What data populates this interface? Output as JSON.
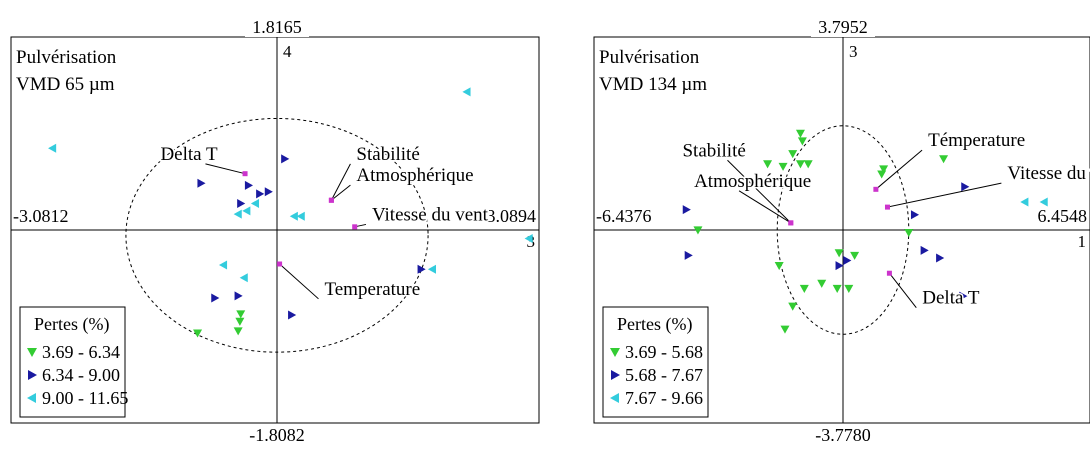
{
  "chart_data": [
    {
      "type": "scatter",
      "title_line1": "Pulvérisation",
      "title_line2": "VMD 65 µm",
      "axis_labels": {
        "top": "1.8165",
        "bottom": "-1.8082",
        "left": "-3.0812",
        "right": "3.0894",
        "center_small_top": "4",
        "right_small": "3"
      },
      "xlim": [
        -3.0812,
        3.0894
      ],
      "ylim": [
        -1.8082,
        1.8165
      ],
      "legend": {
        "title": "Pertes (%)",
        "items": [
          {
            "label": "3.69 - 6.34",
            "color": "#33cc33",
            "shape": "triangle-down"
          },
          {
            "label": "6.34 - 9.00",
            "color": "#1a1aa0",
            "shape": "triangle-right"
          },
          {
            "label": "9.00 - 11.65",
            "color": "#33ccdd",
            "shape": "triangle-left"
          }
        ]
      },
      "circle": {
        "cx": 0,
        "cy": -0.05,
        "rx": 1.75,
        "ry": 1.1
      },
      "variables": [
        {
          "name": "Delta T",
          "x": -0.37,
          "y": 0.53,
          "lx": -1.35,
          "ly": 0.66
        },
        {
          "name": "Stabilité",
          "x": 0.63,
          "y": 0.28,
          "lx": 0.92,
          "ly": 0.66
        },
        {
          "name": "Atmosphérique",
          "x": 0.63,
          "y": 0.28,
          "lx": 0.92,
          "ly": 0.46
        },
        {
          "name": "Vitesse du vent",
          "x": 0.9,
          "y": 0.03,
          "lx": 1.1,
          "ly": 0.09
        },
        {
          "name": "Temperature",
          "x": 0.03,
          "y": -0.32,
          "lx": 0.55,
          "ly": -0.61
        }
      ],
      "points": [
        {
          "g": 0,
          "x": -0.92,
          "y": -0.97
        },
        {
          "g": 0,
          "x": -0.43,
          "y": -0.86
        },
        {
          "g": 0,
          "x": -0.42,
          "y": -0.79
        },
        {
          "g": 0,
          "x": -0.45,
          "y": -0.95
        },
        {
          "g": 1,
          "x": 0.09,
          "y": 0.67
        },
        {
          "g": 1,
          "x": -0.88,
          "y": 0.44
        },
        {
          "g": 1,
          "x": -0.33,
          "y": 0.42
        },
        {
          "g": 1,
          "x": -0.1,
          "y": 0.36
        },
        {
          "g": 1,
          "x": -0.2,
          "y": 0.34
        },
        {
          "g": 1,
          "x": -0.42,
          "y": 0.25
        },
        {
          "g": 1,
          "x": -0.72,
          "y": -0.64
        },
        {
          "g": 1,
          "x": -0.45,
          "y": -0.62
        },
        {
          "g": 1,
          "x": 0.17,
          "y": -0.8
        },
        {
          "g": 1,
          "x": 1.67,
          "y": -0.37
        },
        {
          "g": 2,
          "x": 2.2,
          "y": 1.3
        },
        {
          "g": 2,
          "x": -2.6,
          "y": 0.77
        },
        {
          "g": 2,
          "x": -0.25,
          "y": 0.25
        },
        {
          "g": 2,
          "x": -0.35,
          "y": 0.18
        },
        {
          "g": 2,
          "x": -0.45,
          "y": 0.15
        },
        {
          "g": 2,
          "x": 0.2,
          "y": 0.13
        },
        {
          "g": 2,
          "x": 0.28,
          "y": 0.13
        },
        {
          "g": 2,
          "x": 2.92,
          "y": -0.08
        },
        {
          "g": 2,
          "x": 1.8,
          "y": -0.37
        },
        {
          "g": 2,
          "x": -0.62,
          "y": -0.33
        },
        {
          "g": 2,
          "x": -0.38,
          "y": -0.45
        }
      ]
    },
    {
      "type": "scatter",
      "title_line1": "Pulvérisation",
      "title_line2": "VMD 134 µm",
      "axis_labels": {
        "top": "3.7952",
        "bottom": "-3.7780",
        "left": "-6.4376",
        "right": "6.4548",
        "center_small_top": "3",
        "right_small": "1"
      },
      "xlim": [
        -6.4376,
        6.4548
      ],
      "ylim": [
        -3.778,
        3.7952
      ],
      "legend": {
        "title": "Pertes (%)",
        "items": [
          {
            "label": "3.69 - 5.68",
            "color": "#33cc33",
            "shape": "triangle-down"
          },
          {
            "label": "5.68 - 7.67",
            "color": "#1a1aa0",
            "shape": "triangle-right"
          },
          {
            "label": "7.67 - 9.66",
            "color": "#33ccdd",
            "shape": "triangle-left"
          }
        ]
      },
      "circle": {
        "cx": 0,
        "cy": 0,
        "rx": 1.7,
        "ry": 2.05
      },
      "variables": [
        {
          "name": "Stabilité",
          "x": -1.35,
          "y": 0.14,
          "lx": -4.15,
          "ly": 1.45
        },
        {
          "name": "Atmosphérique",
          "x": -1.35,
          "y": 0.14,
          "lx": -3.85,
          "ly": 0.85
        },
        {
          "name": "Témperature",
          "x": 0.85,
          "y": 0.8,
          "lx": 2.2,
          "ly": 1.65
        },
        {
          "name": "Vitesse du vent",
          "x": 1.15,
          "y": 0.45,
          "lx": 4.25,
          "ly": 1.0
        },
        {
          "name": "Delta T",
          "x": 1.2,
          "y": -0.85,
          "lx": 2.05,
          "ly": -1.45
        }
      ],
      "points": [
        {
          "g": 0,
          "x": -1.1,
          "y": 1.9
        },
        {
          "g": 0,
          "x": -1.05,
          "y": 1.75
        },
        {
          "g": 0,
          "x": -1.3,
          "y": 1.5
        },
        {
          "g": 0,
          "x": -1.55,
          "y": 1.25
        },
        {
          "g": 0,
          "x": -1.1,
          "y": 1.3
        },
        {
          "g": 0,
          "x": -0.9,
          "y": 1.3
        },
        {
          "g": 0,
          "x": -1.95,
          "y": 1.3
        },
        {
          "g": 0,
          "x": 1.05,
          "y": 1.2
        },
        {
          "g": 0,
          "x": 1.0,
          "y": 1.1
        },
        {
          "g": 0,
          "x": 2.6,
          "y": 1.4
        },
        {
          "g": 0,
          "x": -3.75,
          "y": 0.0
        },
        {
          "g": 0,
          "x": 1.7,
          "y": -0.05
        },
        {
          "g": 0,
          "x": -0.1,
          "y": -0.45
        },
        {
          "g": 0,
          "x": 0.3,
          "y": -0.5
        },
        {
          "g": 0,
          "x": -1.65,
          "y": -0.7
        },
        {
          "g": 0,
          "x": -0.55,
          "y": -1.05
        },
        {
          "g": 0,
          "x": -0.15,
          "y": -1.15
        },
        {
          "g": 0,
          "x": 0.15,
          "y": -1.15
        },
        {
          "g": 0,
          "x": -1.0,
          "y": -1.15
        },
        {
          "g": 0,
          "x": -1.3,
          "y": -1.5
        },
        {
          "g": 0,
          "x": -1.5,
          "y": -1.95
        },
        {
          "g": 1,
          "x": 3.15,
          "y": 0.85
        },
        {
          "g": 1,
          "x": -4.05,
          "y": 0.4
        },
        {
          "g": 1,
          "x": 1.85,
          "y": 0.3
        },
        {
          "g": 1,
          "x": -4.0,
          "y": -0.5
        },
        {
          "g": 1,
          "x": 2.1,
          "y": -0.4
        },
        {
          "g": 1,
          "x": 2.5,
          "y": -0.55
        },
        {
          "g": 1,
          "x": -0.1,
          "y": -0.7
        },
        {
          "g": 1,
          "x": 0.1,
          "y": -0.6
        },
        {
          "g": 1,
          "x": 3.1,
          "y": -1.3
        },
        {
          "g": 2,
          "x": 5.2,
          "y": 0.55
        },
        {
          "g": 2,
          "x": 4.7,
          "y": 0.55
        }
      ]
    }
  ]
}
